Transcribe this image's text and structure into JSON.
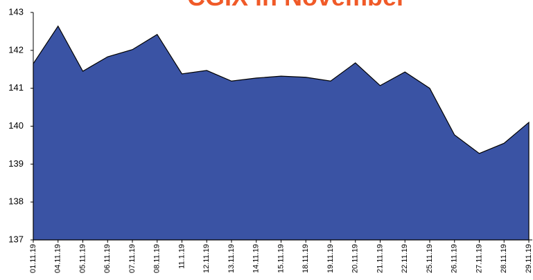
{
  "chart_data": {
    "type": "area",
    "title": "CGIX in November",
    "categories": [
      "01.11.19",
      "04.11.19",
      "05.11.19",
      "06.11.19",
      "07.11.19",
      "08.11.19",
      "11.1.19",
      "12.11.19",
      "13.11.19",
      "14.11.19",
      "15.11.19",
      "18.11.19",
      "19.11.19",
      "20.11.19",
      "21.11.19",
      "22.11.19",
      "25.11.19",
      "26.11.19",
      "27.11.19",
      "28.11.19",
      "29.11.19"
    ],
    "values": [
      141.65,
      142.64,
      141.45,
      141.83,
      142.02,
      142.42,
      141.38,
      141.47,
      141.19,
      141.27,
      141.32,
      141.29,
      141.19,
      141.67,
      141.07,
      141.43,
      141.0,
      139.77,
      139.28,
      139.55,
      140.1
    ],
    "color": "#3a53a4",
    "ylim": [
      137,
      143
    ],
    "yticks": [
      137,
      138,
      139,
      140,
      141,
      142,
      143
    ]
  }
}
